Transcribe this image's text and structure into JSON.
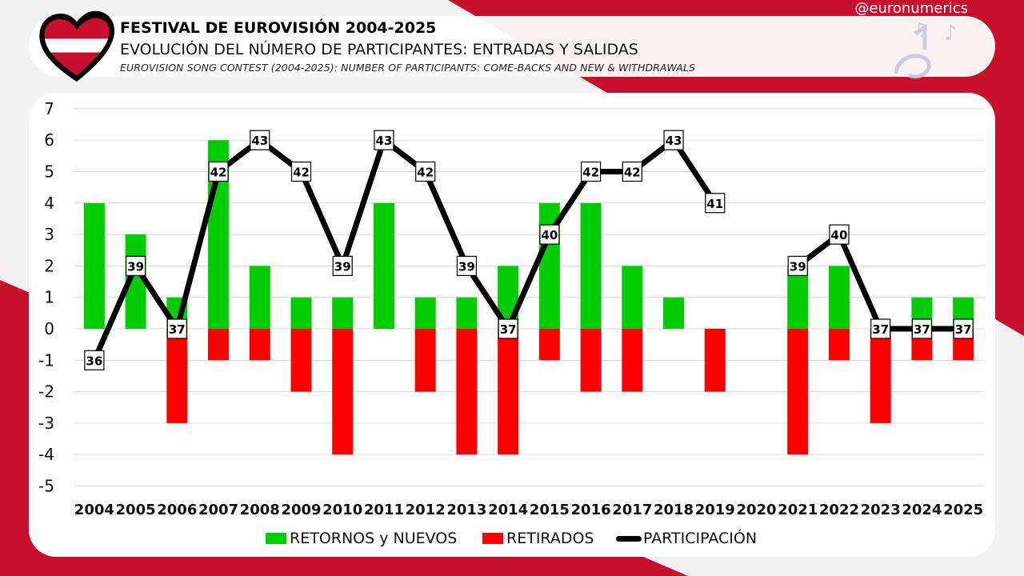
{
  "header": {
    "title": "FESTIVAL DE EUROVISIÓN 2004-2025",
    "subtitle": "EVOLUCIÓN DEL NÚMERO DE PARTICIPANTES: ENTRADAS Y SALIDAS",
    "subtitle_en": "EUROVISION SONG CONTEST (2004-2025): NUMBER OF PARTICIPANTS: COME-BACKS AND NEW & WITHDRAWALS",
    "handle": "@euronumerics"
  },
  "colors": {
    "brand_red": "#c8102e",
    "returns": "#00cc00",
    "withdrawals": "#ff0000",
    "participation": "#000000"
  },
  "chart_data": {
    "type": "bar",
    "categories": [
      "2004",
      "2005",
      "2006",
      "2007",
      "2008",
      "2009",
      "2010",
      "2011",
      "2012",
      "2013",
      "2014",
      "2015",
      "2016",
      "2017",
      "2018",
      "2019",
      "2020",
      "2021",
      "2022",
      "2023",
      "2024",
      "2025"
    ],
    "series": [
      {
        "name": "RETORNOS y NUEVOS",
        "type": "bar",
        "color": "#00cc00",
        "values": [
          4,
          3,
          1,
          6,
          2,
          1,
          1,
          4,
          1,
          1,
          2,
          4,
          4,
          2,
          1,
          0,
          null,
          2,
          2,
          0,
          1,
          1
        ]
      },
      {
        "name": "RETIRADOS",
        "type": "bar",
        "color": "#ff0000",
        "values": [
          0,
          0,
          -3,
          -1,
          -1,
          -2,
          -4,
          0,
          -2,
          -4,
          -4,
          -1,
          -2,
          -2,
          0,
          -2,
          null,
          -4,
          -1,
          -3,
          -1,
          -1
        ]
      },
      {
        "name": "PARTICIPACIÓN",
        "type": "line",
        "color": "#000000",
        "values": [
          36,
          39,
          37,
          42,
          43,
          42,
          39,
          43,
          42,
          39,
          37,
          40,
          42,
          42,
          43,
          41,
          null,
          39,
          40,
          37,
          37,
          37
        ]
      }
    ],
    "ylim": [
      -5,
      7
    ],
    "yticks": [
      7,
      6,
      5,
      4,
      3,
      2,
      1,
      0,
      -1,
      -2,
      -3,
      -4,
      -5
    ],
    "line_offset": 37,
    "grid": true,
    "legend": "bottom-center"
  }
}
